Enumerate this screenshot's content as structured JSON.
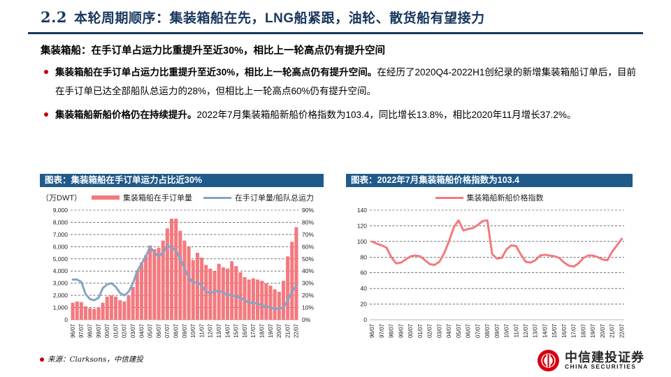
{
  "page": {
    "section_number": "2.2",
    "title": "本轮周期顺序：集装箱船在先，LNG船紧跟，油轮、散货船有望接力"
  },
  "summary": {
    "heading": "集装箱船：在手订单占运力比重提升至近30%，相比上一轮高点仍有提升空间",
    "bullets": [
      {
        "lead": "集装箱船在手订单占运力比重提升至近30%，相比上一轮高点仍有提升空间。",
        "body": "在经历了2020Q4-2022H1创纪录的新增集装箱船订单后，目前在手订单已达全部船队总运力的28%，但相比上一轮高点60%仍有提升空间。"
      },
      {
        "lead": "集装箱船新船价格仍在持续提升。",
        "body": "2022年7月集装箱船新船价格指数为103.4，同比增长13.8%，相比2020年11月增长37.2%。"
      }
    ]
  },
  "colors": {
    "navy_title": "#17375E",
    "chart_header_bg": "#1F5A8A",
    "bar_red": "#F4797E",
    "line_blue": "#87A3C5",
    "accent_red": "#C00000",
    "logo_red": "#D7000F"
  },
  "chart_data": [
    {
      "type": "bar",
      "title": "图表：集装箱船在手订单运力占比近30%",
      "unit_label": "（万DWT）",
      "source": "来源：Clarksons，中信建投",
      "legend_position": "top",
      "grid": true,
      "tick_every": 2,
      "x": [
        "96/07",
        "97/01",
        "97/07",
        "98/01",
        "98/07",
        "99/01",
        "99/07",
        "00/01",
        "00/07",
        "01/01",
        "01/07",
        "02/01",
        "02/07",
        "03/01",
        "03/07",
        "04/01",
        "04/07",
        "05/01",
        "05/07",
        "06/01",
        "06/07",
        "07/01",
        "07/07",
        "08/01",
        "08/07",
        "09/01",
        "09/07",
        "10/01",
        "10/07",
        "11/01",
        "11/07",
        "12/01",
        "12/07",
        "13/01",
        "13/07",
        "14/01",
        "14/07",
        "15/01",
        "15/07",
        "16/01",
        "16/07",
        "17/01",
        "17/07",
        "18/01",
        "18/07",
        "19/01",
        "19/07",
        "20/01",
        "20/07",
        "21/01",
        "21/07",
        "22/01",
        "22/07"
      ],
      "left_axis": {
        "min": 0,
        "max": 9000,
        "step": 1000
      },
      "right_axis": {
        "min": 0,
        "max": 90,
        "step": 10,
        "suffix": "%"
      },
      "series": [
        {
          "name": "集装箱船在手订单量",
          "type": "bar",
          "axis": "left",
          "color": "#F4797E",
          "values": [
            1400,
            1500,
            1450,
            1100,
            950,
            900,
            1000,
            1400,
            1900,
            2000,
            1900,
            1600,
            1500,
            2000,
            2700,
            4000,
            4700,
            5300,
            6100,
            5800,
            5900,
            6500,
            7500,
            8300,
            8300,
            7300,
            6500,
            6000,
            4900,
            5500,
            5100,
            4500,
            4200,
            4000,
            4600,
            4300,
            4200,
            4800,
            4400,
            3900,
            3500,
            3300,
            3400,
            3300,
            3200,
            3000,
            2800,
            2500,
            2300,
            3200,
            5200,
            6400,
            7600
          ]
        },
        {
          "name": "在手订单量/船队总运力",
          "type": "line",
          "axis": "right",
          "color": "#87A3C5",
          "values": [
            33,
            33,
            31,
            21,
            17,
            16,
            18,
            26,
            29,
            30,
            27,
            22,
            20,
            23,
            30,
            40,
            46,
            52,
            60,
            55,
            52,
            55,
            61,
            59,
            57,
            50,
            42,
            35,
            30,
            31,
            28,
            23,
            22,
            23,
            24,
            22,
            21,
            20,
            19,
            18,
            16,
            14,
            14,
            13,
            12,
            11,
            10,
            9,
            9,
            10,
            16,
            23,
            28
          ]
        }
      ]
    },
    {
      "type": "line",
      "title": "图表：2022年7月集装箱船价格指数为103.4",
      "legend_position": "top",
      "grid": true,
      "tick_every": 2,
      "x": [
        "96/07",
        "97/01",
        "97/07",
        "98/01",
        "98/07",
        "99/01",
        "99/07",
        "00/01",
        "00/07",
        "01/01",
        "01/07",
        "02/01",
        "02/07",
        "03/01",
        "03/07",
        "04/01",
        "04/07",
        "05/01",
        "05/07",
        "06/01",
        "06/07",
        "07/01",
        "07/07",
        "08/01",
        "08/07",
        "09/01",
        "09/07",
        "10/01",
        "10/07",
        "11/01",
        "11/07",
        "12/01",
        "12/07",
        "13/01",
        "13/07",
        "14/01",
        "14/07",
        "15/01",
        "15/07",
        "16/01",
        "16/07",
        "17/01",
        "17/07",
        "18/01",
        "18/07",
        "19/01",
        "19/07",
        "20/01",
        "20/07",
        "21/01",
        "21/07",
        "22/01",
        "22/07"
      ],
      "left_axis": {
        "min": 0,
        "max": 140,
        "step": 20
      },
      "series": [
        {
          "name": "集装箱船新船价格指数",
          "type": "line",
          "axis": "left",
          "color": "#F4797E",
          "values": [
            100,
            97,
            95,
            92,
            80,
            72,
            73,
            77,
            81,
            82,
            81,
            76,
            71,
            70,
            74,
            85,
            100,
            118,
            127,
            114,
            116,
            117,
            121,
            126,
            127,
            84,
            78,
            79,
            90,
            95,
            94,
            83,
            74,
            73,
            76,
            82,
            83,
            82,
            81,
            79,
            73,
            69,
            68,
            72,
            79,
            82,
            82,
            80,
            77,
            76,
            87,
            95,
            103.4
          ]
        }
      ]
    }
  ],
  "footer": {
    "logo_cn": "中信建投证券",
    "logo_en": "CHINA SECURITIES"
  }
}
